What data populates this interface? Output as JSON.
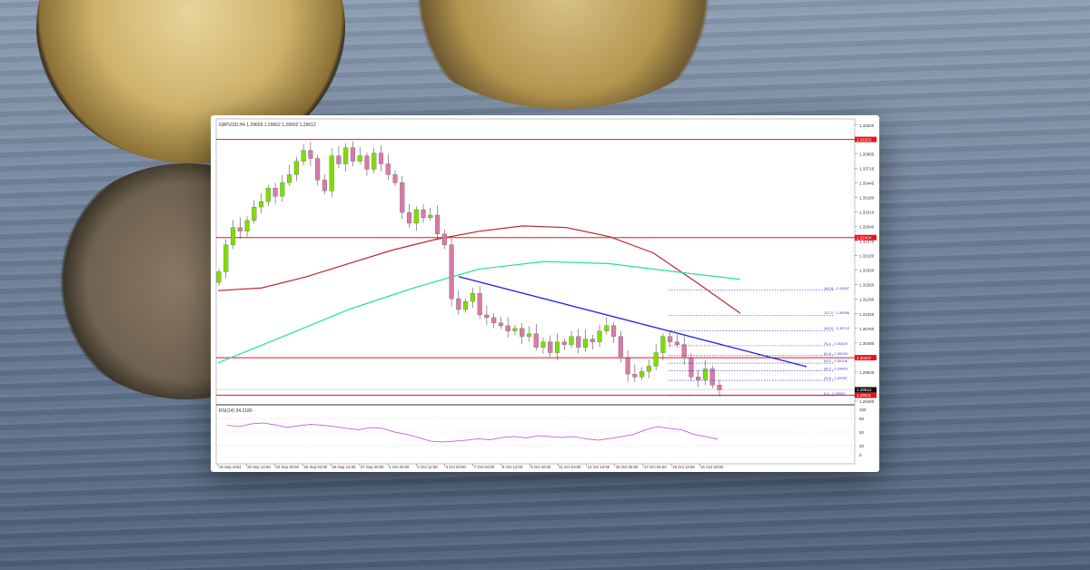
{
  "chart_data": {
    "type": "candlestick",
    "header": "GBPUSD,H4  1.29609 1.29662 1.29602 1.29612",
    "ylim": [
      1.2935,
      1.346
    ],
    "y_ticks": [
      "1.34520",
      "1.33985",
      "1.33716",
      "1.33445",
      "1.33180",
      "1.32910",
      "1.32640",
      "1.32370",
      "1.32100",
      "1.31830",
      "1.31560",
      "1.31290",
      "1.31020",
      "1.30750",
      "1.30480",
      "1.29940",
      "1.29400"
    ],
    "x_ticks": [
      "19 Sep 2024",
      "20 Sep 12:00",
      "23 Sep 20:00",
      "25 Sep 04:00",
      "26 Sep 12:00",
      "27 Sep 20:00",
      "1 Oct 04:00",
      "2 Oct 12:00",
      "3 Oct 20:00",
      "7 Oct 04:00",
      "8 Oct 12:00",
      "9 Oct 20:00",
      "11 Oct 04:00",
      "14 Oct 12:00",
      "15 Oct 20:00",
      "17 Oct 04:00",
      "18 Oct 12:00",
      "21 Oct 20:00"
    ],
    "closes": [
      1.318,
      1.323,
      1.3262,
      1.3255,
      1.3275,
      1.33,
      1.331,
      1.3335,
      1.332,
      1.3345,
      1.336,
      1.3385,
      1.3405,
      1.339,
      1.335,
      1.333,
      1.3395,
      1.338,
      1.341,
      1.3385,
      1.3395,
      1.337,
      1.34,
      1.338,
      1.336,
      1.3345,
      1.329,
      1.327,
      1.3295,
      1.328,
      1.3285,
      1.325,
      1.323,
      1.313,
      1.311,
      1.3125,
      1.314,
      1.31,
      1.3095,
      1.3085,
      1.308,
      1.307,
      1.3075,
      1.306,
      1.3065,
      1.304,
      1.305,
      1.303,
      1.305,
      1.3045,
      1.306,
      1.304,
      1.3055,
      1.305,
      1.307,
      1.308,
      1.306,
      1.302,
      1.299,
      1.2985,
      1.2995,
      1.3005,
      1.303,
      1.306,
      1.305,
      1.3045,
      1.302,
      1.2985,
      1.298,
      1.3,
      1.297,
      1.2961
    ],
    "horizontal_levels": [
      {
        "label": "1.34253",
        "price": 1.34253,
        "color": "#e8141c"
      },
      {
        "label": "1.32434",
        "price": 1.32434,
        "color": "#e8141c"
      },
      {
        "label": "1.30207",
        "price": 1.30207,
        "color": "#e8141c"
      },
      {
        "label": "1.29511",
        "price": 1.29511,
        "color": "#e8141c"
      }
    ],
    "current_price": {
      "label": "1.29612",
      "price": 1.29612
    },
    "fibonacci": [
      {
        "label": "161.8 - 1.31457",
        "price": 1.31457
      },
      {
        "label": "127.2 - 1.30995",
        "price": 1.30995
      },
      {
        "label": "100.0 - 1.30710",
        "price": 1.3071
      },
      {
        "label": "76.4 - 1.30429",
        "price": 1.30429
      },
      {
        "label": "61.8 - 1.30245",
        "price": 1.30245
      },
      {
        "label": "50.0 - 1.30106",
        "price": 1.30106
      },
      {
        "label": "38.2 - 1.29963",
        "price": 1.29963
      },
      {
        "label": "23.6 - 1.29787",
        "price": 1.29787
      },
      {
        "label": "0.0 - 1.29502",
        "price": 1.29502
      }
    ],
    "ma_red": [
      1.3145,
      1.315,
      1.317,
      1.3195,
      1.322,
      1.324,
      1.3255,
      1.3265,
      1.3262,
      1.3245,
      1.3215,
      1.316,
      1.3103
    ],
    "ma_green": [
      1.3011,
      1.306,
      1.311,
      1.315,
      1.3185,
      1.3199,
      1.3195,
      1.318,
      1.3166
    ],
    "trendline": [
      1.3171,
      1.3004
    ],
    "rsi": {
      "label": "RSI(14) 34.2180",
      "levels": [
        "100",
        "80",
        "50",
        "20",
        "0"
      ],
      "values": [
        65,
        62,
        68,
        70,
        66,
        60,
        64,
        67,
        65,
        62,
        58,
        55,
        60,
        58,
        50,
        45,
        38,
        30,
        28,
        30,
        32,
        35,
        33,
        38,
        40,
        37,
        42,
        40,
        38,
        40,
        35,
        32,
        36,
        40,
        45,
        55,
        62,
        58,
        55,
        45,
        40,
        34
      ]
    },
    "colors": {
      "up": "#7fdd00",
      "down": "#d87aa8",
      "ma_red": "#c0262b",
      "ma_green": "#22e0a0",
      "trendline": "#2222e8",
      "fib": "#3333dd",
      "rsi": "#bb44dd"
    }
  }
}
